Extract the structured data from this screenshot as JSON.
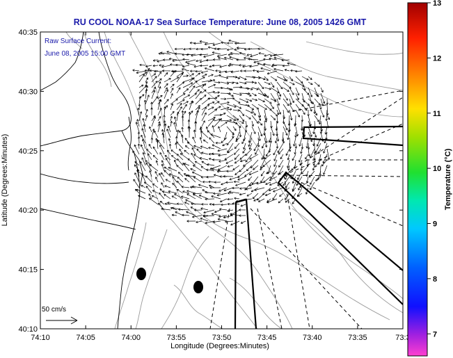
{
  "title": "RU COOL  NOAA-17  Sea Surface Temperature:  June 08, 2005 1426 GMT",
  "annotation": {
    "line1": "Raw Surface Current:",
    "line2": "June 08, 2005 15:00 GMT"
  },
  "scale_label": "50 cm/s",
  "xlabel": "Longitude (Degrees:Minutes)",
  "ylabel": "Latitude (Degrees:Minutes)",
  "x_ticks": [
    "74:10",
    "74:05",
    "74:00",
    "73:55",
    "73:50",
    "73:45",
    "73:40",
    "73:35",
    "73:3"
  ],
  "y_ticks": [
    "40:35",
    "40:30",
    "40:25",
    "40:20",
    "40:15",
    "40:10"
  ],
  "colorbar": {
    "label": "Temperature (°C)",
    "ticks": [
      "13",
      "12",
      "11",
      "10",
      "9",
      "8",
      "7"
    ],
    "range": [
      6.6,
      13
    ]
  },
  "colors": {
    "title": "#1a1aaa",
    "coast": "#000000",
    "bathymetry": "#9a9a9a"
  }
}
